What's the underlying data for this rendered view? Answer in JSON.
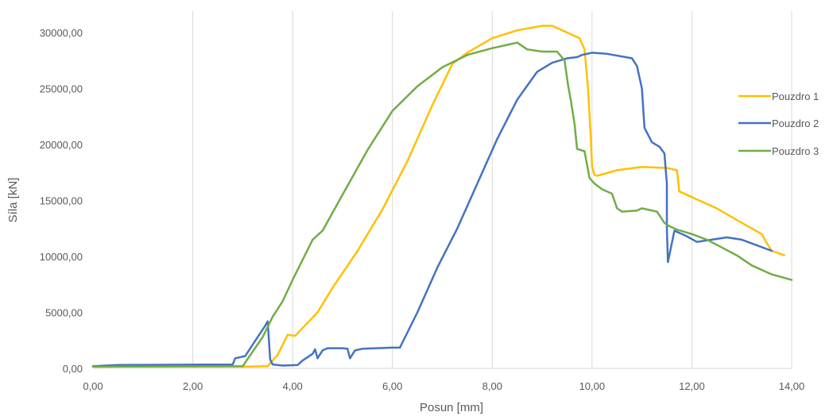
{
  "chart_data": {
    "type": "line",
    "xlabel": "Posun [mm]",
    "ylabel": "Síla [kN]",
    "xlim": [
      0,
      14
    ],
    "ylim": [
      0,
      30000
    ],
    "x_ticks": [
      0,
      2,
      4,
      6,
      8,
      10,
      12,
      14
    ],
    "y_ticks": [
      0,
      5000,
      10000,
      15000,
      20000,
      25000,
      30000
    ],
    "x_tick_labels": [
      "0,00",
      "2,00",
      "4,00",
      "6,00",
      "8,00",
      "10,00",
      "12,00",
      "14,00"
    ],
    "y_tick_labels": [
      "0,00",
      "5000,00",
      "10000,00",
      "15000,00",
      "20000,00",
      "25000,00",
      "30000,00"
    ],
    "grid": "vertical",
    "legend_position": "right",
    "series": [
      {
        "name": "Pouzdro 1",
        "color": "#FFC000",
        "points": [
          [
            0,
            150
          ],
          [
            3.0,
            150
          ],
          [
            3.5,
            200
          ],
          [
            3.7,
            1200
          ],
          [
            3.9,
            3000
          ],
          [
            4.05,
            2900
          ],
          [
            4.2,
            3600
          ],
          [
            4.5,
            5000
          ],
          [
            4.8,
            7200
          ],
          [
            5.0,
            8500
          ],
          [
            5.3,
            10500
          ],
          [
            5.8,
            14200
          ],
          [
            6.3,
            18500
          ],
          [
            6.8,
            23500
          ],
          [
            7.2,
            27200
          ],
          [
            7.5,
            28200
          ],
          [
            8.0,
            29500
          ],
          [
            8.5,
            30200
          ],
          [
            9.0,
            30600
          ],
          [
            9.2,
            30600
          ],
          [
            9.5,
            30000
          ],
          [
            9.75,
            29500
          ],
          [
            9.85,
            28500
          ],
          [
            9.92,
            25000
          ],
          [
            9.97,
            21000
          ],
          [
            10.0,
            18000
          ],
          [
            10.05,
            17300
          ],
          [
            10.1,
            17200
          ],
          [
            10.5,
            17700
          ],
          [
            11.0,
            18000
          ],
          [
            11.5,
            17900
          ],
          [
            11.7,
            17700
          ],
          [
            11.75,
            15800
          ],
          [
            12.0,
            15300
          ],
          [
            12.5,
            14300
          ],
          [
            13.0,
            13000
          ],
          [
            13.4,
            12000
          ],
          [
            13.5,
            11200
          ],
          [
            13.6,
            10500
          ],
          [
            13.85,
            10100
          ]
        ]
      },
      {
        "name": "Pouzdro 2",
        "color": "#4472C4",
        "points": [
          [
            0,
            200
          ],
          [
            0.5,
            300
          ],
          [
            2.8,
            350
          ],
          [
            2.85,
            900
          ],
          [
            3.05,
            1100
          ],
          [
            3.3,
            2800
          ],
          [
            3.45,
            3800
          ],
          [
            3.5,
            4200
          ],
          [
            3.55,
            800
          ],
          [
            3.6,
            350
          ],
          [
            3.8,
            250
          ],
          [
            4.1,
            300
          ],
          [
            4.2,
            700
          ],
          [
            4.4,
            1300
          ],
          [
            4.45,
            1700
          ],
          [
            4.5,
            900
          ],
          [
            4.6,
            1600
          ],
          [
            4.7,
            1800
          ],
          [
            5.0,
            1800
          ],
          [
            5.1,
            1750
          ],
          [
            5.15,
            900
          ],
          [
            5.25,
            1600
          ],
          [
            5.4,
            1750
          ],
          [
            6.0,
            1850
          ],
          [
            6.15,
            1850
          ],
          [
            6.5,
            5000
          ],
          [
            6.9,
            9000
          ],
          [
            7.3,
            12500
          ],
          [
            7.7,
            16500
          ],
          [
            8.1,
            20500
          ],
          [
            8.5,
            24000
          ],
          [
            8.9,
            26500
          ],
          [
            9.2,
            27300
          ],
          [
            9.5,
            27700
          ],
          [
            9.7,
            27800
          ],
          [
            9.8,
            28000
          ],
          [
            10.0,
            28200
          ],
          [
            10.3,
            28100
          ],
          [
            10.8,
            27700
          ],
          [
            10.9,
            27000
          ],
          [
            11.0,
            25000
          ],
          [
            11.05,
            21500
          ],
          [
            11.2,
            20200
          ],
          [
            11.35,
            19800
          ],
          [
            11.45,
            19200
          ],
          [
            11.5,
            16500
          ],
          [
            11.5,
            12500
          ],
          [
            11.52,
            9500
          ],
          [
            11.65,
            12300
          ],
          [
            11.9,
            11800
          ],
          [
            12.1,
            11300
          ],
          [
            12.7,
            11700
          ],
          [
            13.0,
            11500
          ],
          [
            13.3,
            11000
          ],
          [
            13.6,
            10500
          ]
        ]
      },
      {
        "name": "Pouzdro 3",
        "color": "#70AD47",
        "points": [
          [
            0,
            150
          ],
          [
            3.0,
            200
          ],
          [
            3.4,
            2800
          ],
          [
            3.6,
            4600
          ],
          [
            3.8,
            6000
          ],
          [
            4.0,
            7900
          ],
          [
            4.4,
            11500
          ],
          [
            4.6,
            12300
          ],
          [
            5.0,
            15500
          ],
          [
            5.5,
            19500
          ],
          [
            6.0,
            23000
          ],
          [
            6.5,
            25200
          ],
          [
            7.0,
            26900
          ],
          [
            7.5,
            28000
          ],
          [
            8.0,
            28600
          ],
          [
            8.5,
            29100
          ],
          [
            8.7,
            28500
          ],
          [
            9.0,
            28300
          ],
          [
            9.3,
            28300
          ],
          [
            9.45,
            27500
          ],
          [
            9.52,
            25300
          ],
          [
            9.58,
            23800
          ],
          [
            9.65,
            21800
          ],
          [
            9.7,
            19600
          ],
          [
            9.85,
            19400
          ],
          [
            9.95,
            17000
          ],
          [
            10.05,
            16500
          ],
          [
            10.2,
            16000
          ],
          [
            10.4,
            15600
          ],
          [
            10.5,
            14300
          ],
          [
            10.6,
            14000
          ],
          [
            10.9,
            14100
          ],
          [
            11.0,
            14300
          ],
          [
            11.3,
            14000
          ],
          [
            11.45,
            13000
          ],
          [
            11.55,
            12700
          ],
          [
            11.7,
            12400
          ],
          [
            12.0,
            12000
          ],
          [
            12.3,
            11500
          ],
          [
            12.6,
            10800
          ],
          [
            12.9,
            10100
          ],
          [
            13.2,
            9200
          ],
          [
            13.6,
            8400
          ],
          [
            14.0,
            7900
          ]
        ]
      }
    ]
  }
}
